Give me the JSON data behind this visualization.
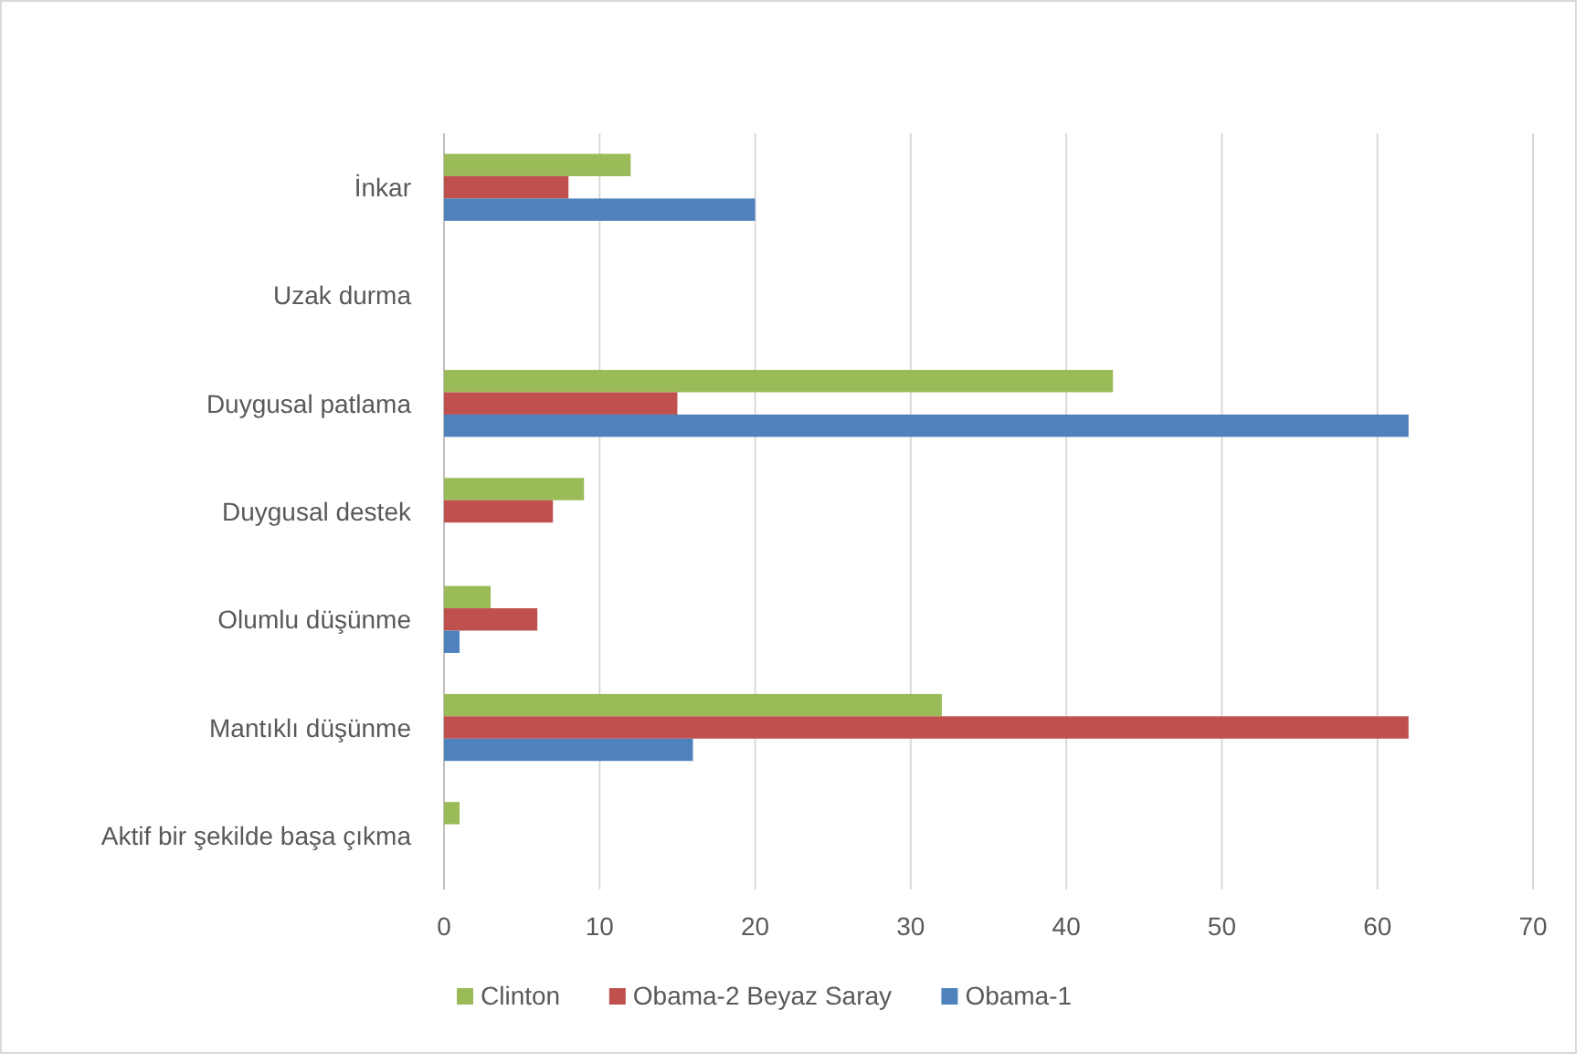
{
  "chart_data": {
    "type": "bar",
    "orientation": "horizontal",
    "categories": [
      "İnkar",
      "Uzak durma",
      "Duygusal patlama",
      "Duygusal destek",
      "Olumlu düşünme",
      "Mantıklı düşünme",
      "Aktif bir şekilde başa çıkma"
    ],
    "series": [
      {
        "name": "Clinton",
        "color": "#9bbb59",
        "values": [
          12,
          0,
          43,
          9,
          3,
          32,
          1
        ]
      },
      {
        "name": "Obama-2 Beyaz Saray",
        "color": "#c0504d",
        "values": [
          8,
          0,
          15,
          7,
          6,
          62,
          0
        ]
      },
      {
        "name": "Obama-1",
        "color": "#4f81bd",
        "values": [
          20,
          0,
          62,
          0,
          1,
          16,
          0
        ]
      }
    ],
    "xlim": [
      0,
      70
    ],
    "xticks": [
      0,
      10,
      20,
      30,
      40,
      50,
      60,
      70
    ],
    "grid": "x",
    "legend": "bottom"
  }
}
